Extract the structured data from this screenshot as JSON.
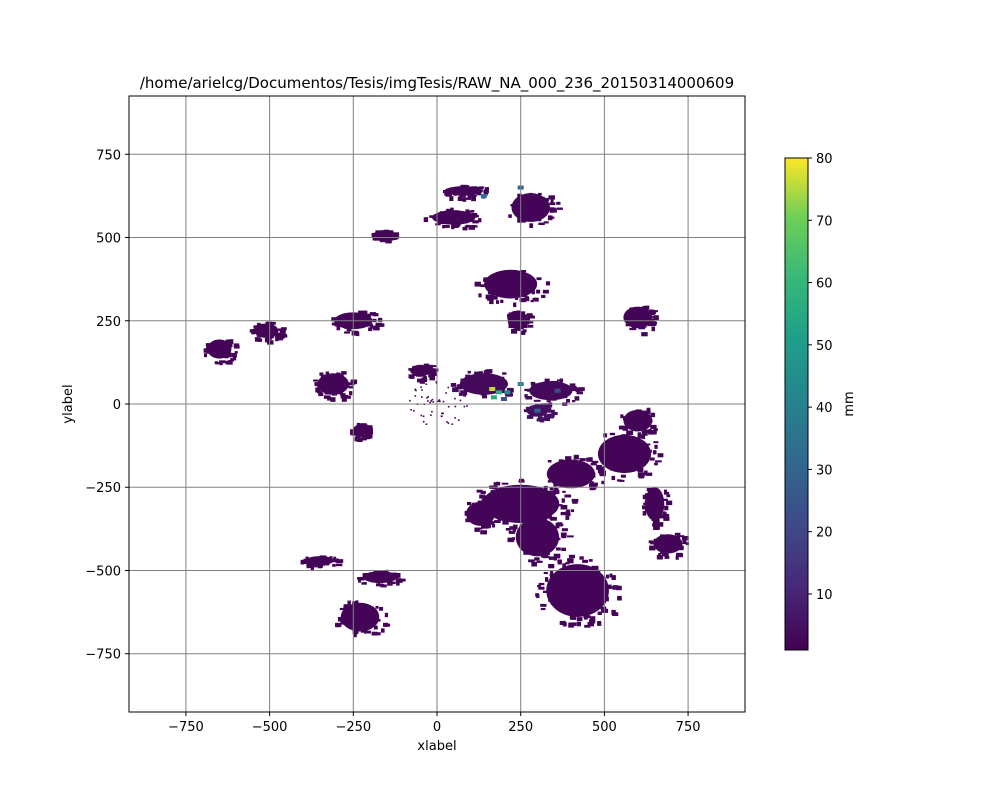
{
  "chart_data": {
    "type": "heatmap",
    "title": "/home/arielcg/Documentos/Tesis/imgTesis/RAW_NA_000_236_20150314000609",
    "xlabel": "xlabel",
    "ylabel": "ylabel",
    "xlim": [
      -920,
      920
    ],
    "ylim": [
      -925,
      925
    ],
    "xticks": [
      -750,
      -500,
      -250,
      0,
      250,
      500,
      750
    ],
    "yticks": [
      -750,
      -500,
      -250,
      0,
      250,
      500,
      750
    ],
    "grid": true,
    "grid_color": "#808080",
    "colormap": "viridis",
    "colorbar": {
      "label": "mm",
      "range": [
        1,
        80
      ],
      "ticks": [
        10,
        20,
        30,
        40,
        50,
        60,
        70,
        80
      ]
    },
    "echo_regions": [
      {
        "cx": 420,
        "cy": -560,
        "rx": 130,
        "ry": 110,
        "value": 2
      },
      {
        "cx": 300,
        "cy": -400,
        "rx": 90,
        "ry": 80,
        "value": 2
      },
      {
        "cx": 250,
        "cy": -300,
        "rx": 160,
        "ry": 80,
        "value": 2
      },
      {
        "cx": 130,
        "cy": -330,
        "rx": 60,
        "ry": 50,
        "value": 2
      },
      {
        "cx": 400,
        "cy": -210,
        "rx": 100,
        "ry": 60,
        "value": 2
      },
      {
        "cx": 560,
        "cy": -150,
        "rx": 110,
        "ry": 80,
        "value": 2
      },
      {
        "cx": 650,
        "cy": -300,
        "rx": 40,
        "ry": 70,
        "value": 2
      },
      {
        "cx": 600,
        "cy": -50,
        "rx": 60,
        "ry": 45,
        "value": 2
      },
      {
        "cx": 140,
        "cy": 60,
        "rx": 100,
        "ry": 45,
        "value": 3
      },
      {
        "cx": 340,
        "cy": 40,
        "rx": 90,
        "ry": 40,
        "value": 3
      },
      {
        "cx": 300,
        "cy": -20,
        "rx": 45,
        "ry": 25,
        "value": 5
      },
      {
        "cx": -250,
        "cy": 250,
        "rx": 80,
        "ry": 35,
        "value": 2
      },
      {
        "cx": -50,
        "cy": 100,
        "rx": 40,
        "ry": 25,
        "value": 2
      },
      {
        "cx": -310,
        "cy": 60,
        "rx": 65,
        "ry": 45,
        "value": 2
      },
      {
        "cx": -650,
        "cy": 165,
        "rx": 50,
        "ry": 40,
        "value": 2
      },
      {
        "cx": -510,
        "cy": 220,
        "rx": 50,
        "ry": 30,
        "value": 2
      },
      {
        "cx": -230,
        "cy": -80,
        "rx": 30,
        "ry": 25,
        "value": 2
      },
      {
        "cx": 600,
        "cy": 260,
        "rx": 60,
        "ry": 45,
        "value": 2
      },
      {
        "cx": 220,
        "cy": 360,
        "rx": 110,
        "ry": 60,
        "value": 2
      },
      {
        "cx": 240,
        "cy": 250,
        "rx": 40,
        "ry": 35,
        "value": 2
      },
      {
        "cx": 50,
        "cy": 560,
        "rx": 90,
        "ry": 30,
        "value": 2
      },
      {
        "cx": 280,
        "cy": 590,
        "rx": 80,
        "ry": 60,
        "value": 2
      },
      {
        "cx": 80,
        "cy": 640,
        "rx": 80,
        "ry": 20,
        "value": 2
      },
      {
        "cx": -160,
        "cy": 510,
        "rx": 40,
        "ry": 15,
        "value": 2
      },
      {
        "cx": -230,
        "cy": -640,
        "rx": 80,
        "ry": 60,
        "value": 2
      },
      {
        "cx": -350,
        "cy": -470,
        "rx": 60,
        "ry": 18,
        "value": 2
      },
      {
        "cx": -170,
        "cy": -520,
        "rx": 70,
        "ry": 25,
        "value": 2
      },
      {
        "cx": 0,
        "cy": 0,
        "rx": 90,
        "ry": 70,
        "value": 1
      },
      {
        "cx": 690,
        "cy": -420,
        "rx": 60,
        "ry": 40,
        "value": 2
      }
    ],
    "high_cells": [
      {
        "x": 165,
        "y": 45,
        "value": 76
      },
      {
        "x": 185,
        "y": 35,
        "value": 58
      },
      {
        "x": 210,
        "y": 35,
        "value": 45
      },
      {
        "x": 250,
        "y": 60,
        "value": 40
      },
      {
        "x": 170,
        "y": 20,
        "value": 55
      },
      {
        "x": 300,
        "y": -20,
        "value": 30
      },
      {
        "x": 360,
        "y": 40,
        "value": 22
      },
      {
        "x": 140,
        "y": 625,
        "value": 35
      },
      {
        "x": 250,
        "y": 650,
        "value": 30
      },
      {
        "x": 200,
        "y": 15,
        "value": 25
      }
    ]
  }
}
